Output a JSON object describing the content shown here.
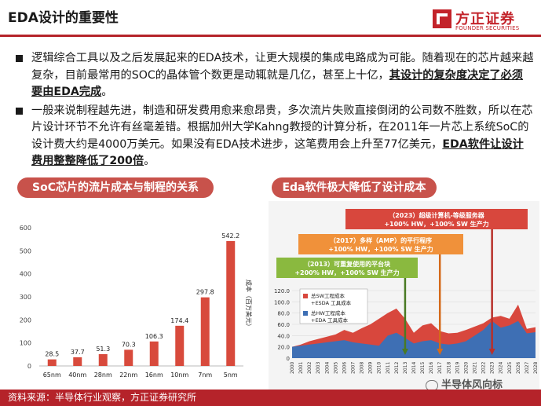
{
  "title": "EDA设计的重要性",
  "logo": {
    "cn": "方正证券",
    "en": "FOUNDER SECURITIES"
  },
  "bullets": [
    {
      "pre": "逻辑综合工具以及之后发展起来的EDA技术，让更大规模的集成电路成为可能。随着现在的芯片越来越复杂，目前最常用的SOC的晶体管个数更是动辄就是几亿，甚至上十亿，",
      "emph": "其设计的复杂度决定了必须要由EDA完成",
      "post": "。"
    },
    {
      "pre": "一般来说制程越先进，制造和研发费用愈来愈昂贵，多次流片失败直接倒闭的公司数不胜数，所以在芯片设计环节不允许有丝毫差错。根据加州大学Kahng教授的计算分析，在2011年一片芯上系统SoC的设计费大约是4000万美元。如果没有EDA技术进步，这笔费用会上升至77亿美元，",
      "emph": "EDA软件让设计费用整整降低了200倍",
      "post": "。"
    }
  ],
  "left_panel_label": "SoC芯片的流片成本与制程的关系",
  "right_panel_label": "Eda软件极大降低了设计成本",
  "chart_data": [
    {
      "type": "bar",
      "categories": [
        "65nm",
        "40nm",
        "28nm",
        "22nm",
        "16nm",
        "10nm",
        "7nm",
        "5nm"
      ],
      "values": [
        28.5,
        37.7,
        51.3,
        70.3,
        106.3,
        174.4,
        297.8,
        542.2
      ],
      "value_labels": [
        "28.5",
        "37.7",
        "51.3",
        "70.3",
        "106.3",
        "174.4",
        "297.8",
        "542.2"
      ],
      "ylabel": "成本（百万美元）",
      "ylim": [
        0,
        600
      ],
      "yticks": [
        0,
        100,
        200,
        300,
        400,
        500,
        600
      ],
      "color": "#d84a3c"
    },
    {
      "type": "area",
      "x": [
        "2000",
        "2001",
        "2002",
        "2003",
        "2004",
        "2005",
        "2006",
        "2007",
        "2008",
        "2009",
        "2010",
        "2011",
        "2012",
        "2013",
        "2014",
        "2015",
        "2016",
        "2017",
        "2018",
        "2019",
        "2020",
        "2021",
        "2022",
        "2023",
        "2024",
        "2025",
        "2026",
        "2027",
        "2028"
      ],
      "series": [
        {
          "name": "总SW工程成本 +ESDA 工具成本",
          "color": "#d8473d",
          "values": [
            20,
            24,
            30,
            34,
            38,
            42,
            50,
            45,
            53,
            60,
            70,
            80,
            88,
            70,
            45,
            58,
            62,
            48,
            44,
            45,
            50,
            56,
            62,
            72,
            75,
            70,
            95,
            52,
            55
          ]
        },
        {
          "name": "总HW工程成本 +EDA 工具成本",
          "color": "#3e6fb4",
          "values": [
            20,
            22,
            24,
            26,
            28,
            30,
            32,
            28,
            26,
            24,
            22,
            40,
            45,
            36,
            26,
            30,
            32,
            26,
            24,
            26,
            30,
            40,
            50,
            66,
            54,
            58,
            66,
            44,
            46
          ]
        }
      ],
      "ylim": [
        0,
        120
      ],
      "yticks": [
        "0",
        "20.0",
        "40.0",
        "60.0",
        "80.0",
        "100.0",
        "120.0"
      ],
      "callouts": [
        {
          "year": "2013",
          "text": "（2013）可重复使用的平台块 +200% HW，+100% SW 生产力",
          "color": "#8ab93f",
          "arrow": "#4a7a24"
        },
        {
          "year": "2017",
          "text": "（2017）多样（AMP）的平行程序 +100% HW，+100% SW 生产力",
          "color": "#f0913a",
          "arrow": "#d46a1a"
        },
        {
          "year": "2023",
          "text": "（2023）超级计算机-等级服务器 +100% HW，+100% SW 生产力",
          "color": "#d8473d",
          "arrow": "#b8302a"
        }
      ]
    }
  ],
  "footer": "资料来源：半导体行业观察，方正证券研究所",
  "watermark": "半导体风向标"
}
